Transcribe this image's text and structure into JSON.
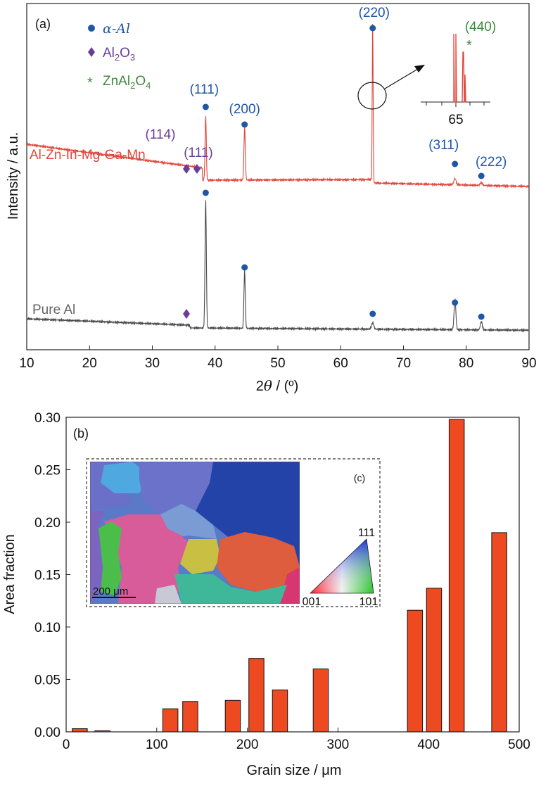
{
  "colors": {
    "blue": "#1f56a6",
    "purple": "#6a3d9a",
    "green": "#3e8b3a",
    "red": "#e0463a",
    "gray": "#4a4a4a",
    "bar_fill": "#ee4a22"
  },
  "panel_a": {
    "label": "(a)",
    "legend": {
      "alpha_al": "α-Al",
      "al2o3_prefix": "Al",
      "al2o3_sub1": "2",
      "al2o3_mid": "O",
      "al2o3_sub2": "3",
      "znal_prefix": "ZnAl",
      "znal_sub1": "2",
      "znal_mid": "O",
      "znal_sub2": "4"
    },
    "inset_tick_label": "65"
  },
  "panel_b": {
    "label": "(b)",
    "inset_label": "(c)",
    "scale_bar": "200 μm",
    "ipf_labels": [
      "111",
      "001",
      "101"
    ]
  },
  "chart_data": [
    {
      "type": "line",
      "xlabel_theta": "θ",
      "xlabel_prefix": "2",
      "xlabel_suffix": " / (º)",
      "ylabel": "Intensity / a.u.",
      "xlim": [
        10,
        90
      ],
      "xticks": [
        "10",
        "20",
        "30",
        "40",
        "50",
        "60",
        "70",
        "80",
        "90"
      ],
      "series": [
        {
          "name": "Al-Zn-In-Mg-Ga-Mn",
          "color": "#e0463a",
          "peaks": [
            {
              "x": 38.5,
              "label": "(111)"
            },
            {
              "x": 44.7,
              "label": "(200)"
            },
            {
              "x": 65.1,
              "label": "(220)"
            },
            {
              "x": 78.2,
              "label": "(311)"
            },
            {
              "x": 82.4,
              "label": "(222)"
            }
          ]
        },
        {
          "name": "Pure Al",
          "color": "#4a4a4a",
          "peaks": [
            {
              "x": 38.5
            },
            {
              "x": 44.7
            },
            {
              "x": 65.1
            },
            {
              "x": 78.2
            },
            {
              "x": 82.4
            }
          ]
        }
      ],
      "al2o3_labels": [
        "(114)",
        "(111)"
      ],
      "znal2o4_label": "(440)"
    },
    {
      "type": "bar",
      "xlabel": "Grain size / μm",
      "ylabel": "Area fraction",
      "xlim": [
        0,
        500
      ],
      "ylim": [
        0,
        0.3
      ],
      "xticks": [
        "0",
        "100",
        "200",
        "300",
        "400",
        "500"
      ],
      "yticks": [
        "0.00",
        "0.05",
        "0.10",
        "0.15",
        "0.20",
        "0.25",
        "0.30"
      ],
      "bars": [
        {
          "x": 15,
          "value": 0.003
        },
        {
          "x": 40,
          "value": 0.001
        },
        {
          "x": 115,
          "value": 0.022
        },
        {
          "x": 137,
          "value": 0.029
        },
        {
          "x": 184,
          "value": 0.03
        },
        {
          "x": 210,
          "value": 0.07
        },
        {
          "x": 236,
          "value": 0.04
        },
        {
          "x": 281,
          "value": 0.06
        },
        {
          "x": 385,
          "value": 0.116
        },
        {
          "x": 406,
          "value": 0.137
        },
        {
          "x": 431,
          "value": 0.298
        },
        {
          "x": 478,
          "value": 0.19
        }
      ]
    }
  ]
}
